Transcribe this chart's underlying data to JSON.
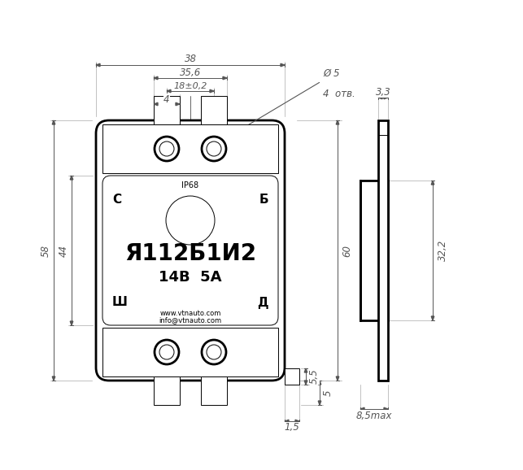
{
  "bg_color": "#ffffff",
  "line_color": "#000000",
  "dim_color": "#555555",
  "title": "Я112Б1И2",
  "subtitle1": "14В  5А",
  "website1": "www.vtnauto.com",
  "website2": "info@vtnauto.com",
  "labels": {
    "C": "С",
    "B": "Б",
    "SH": "Ш",
    "D": "Д",
    "ip": "IP68"
  },
  "dims": {
    "d38": "38",
    "d35_6": "35,6",
    "d18": "18±0,2",
    "d4": "4",
    "d5": "Ø 5",
    "d4otv": "4  отв.",
    "d3_3": "3,3",
    "d58": "58",
    "d44": "44",
    "d60": "60",
    "d32_2": "32,2",
    "d5_5": "5,5",
    "d5b": "5",
    "d1_5": "1,5",
    "d8_5": "8,5max"
  }
}
